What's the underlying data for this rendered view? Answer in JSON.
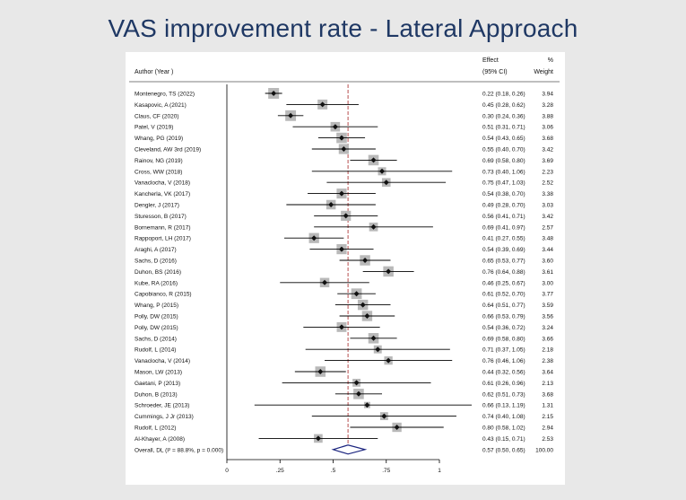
{
  "slide": {
    "title": "VAS improvement rate - Lateral Approach"
  },
  "chart_data": {
    "type": "forest",
    "title": "VAS improvement rate - Lateral Approach",
    "headers": {
      "author": "Author (Year )",
      "effect_line1": "Effect",
      "effect_line2": "(95% CI)",
      "weight_line1": "%",
      "weight_line2": "Weight"
    },
    "xlim": [
      0,
      1
    ],
    "x_ticks": [
      0,
      0.25,
      0.5,
      0.75,
      1
    ],
    "x_tick_labels": [
      "0",
      ".25",
      ".5",
      ".75",
      "1"
    ],
    "reference_line": 0.57,
    "studies": [
      {
        "author": "Montenegro, TS (2022)",
        "es": 0.22,
        "lo": 0.18,
        "hi": 0.26,
        "ci_text": "0.22 (0.18, 0.26)",
        "weight": "3.94"
      },
      {
        "author": "Kasapovic, A (2021)",
        "es": 0.45,
        "lo": 0.28,
        "hi": 0.62,
        "ci_text": "0.45 (0.28, 0.62)",
        "weight": "3.28"
      },
      {
        "author": "Claus, CF (2020)",
        "es": 0.3,
        "lo": 0.24,
        "hi": 0.36,
        "ci_text": "0.30 (0.24, 0.36)",
        "weight": "3.88"
      },
      {
        "author": "Patel, V (2019)",
        "es": 0.51,
        "lo": 0.31,
        "hi": 0.71,
        "ci_text": "0.51 (0.31, 0.71)",
        "weight": "3.06"
      },
      {
        "author": "Whang, PG (2019)",
        "es": 0.54,
        "lo": 0.43,
        "hi": 0.65,
        "ci_text": "0.54 (0.43, 0.65)",
        "weight": "3.68"
      },
      {
        "author": "Cleveland, AW 3rd (2019)",
        "es": 0.55,
        "lo": 0.4,
        "hi": 0.7,
        "ci_text": "0.55 (0.40, 0.70)",
        "weight": "3.42"
      },
      {
        "author": "Rainov, NG (2019)",
        "es": 0.69,
        "lo": 0.58,
        "hi": 0.8,
        "ci_text": "0.69 (0.58, 0.80)",
        "weight": "3.69"
      },
      {
        "author": "Cross, WW (2018)",
        "es": 0.73,
        "lo": 0.4,
        "hi": 1.06,
        "ci_text": "0.73 (0.40, 1.06)",
        "weight": "2.23"
      },
      {
        "author": "Vanaclocha, V (2018)",
        "es": 0.75,
        "lo": 0.47,
        "hi": 1.03,
        "ci_text": "0.75 (0.47, 1.03)",
        "weight": "2.52"
      },
      {
        "author": "Kancherla, VK (2017)",
        "es": 0.54,
        "lo": 0.38,
        "hi": 0.7,
        "ci_text": "0.54 (0.38, 0.70)",
        "weight": "3.38"
      },
      {
        "author": "Dengler, J (2017)",
        "es": 0.49,
        "lo": 0.28,
        "hi": 0.7,
        "ci_text": "0.49 (0.28, 0.70)",
        "weight": "3.03"
      },
      {
        "author": "Sturesson, B (2017)",
        "es": 0.56,
        "lo": 0.41,
        "hi": 0.71,
        "ci_text": "0.56 (0.41, 0.71)",
        "weight": "3.42"
      },
      {
        "author": "Bornemann, R (2017)",
        "es": 0.69,
        "lo": 0.41,
        "hi": 0.97,
        "ci_text": "0.69 (0.41, 0.97)",
        "weight": "2.57"
      },
      {
        "author": "Rappoport, LH (2017)",
        "es": 0.41,
        "lo": 0.27,
        "hi": 0.55,
        "ci_text": "0.41 (0.27, 0.55)",
        "weight": "3.48"
      },
      {
        "author": "Araghi, A (2017)",
        "es": 0.54,
        "lo": 0.39,
        "hi": 0.69,
        "ci_text": "0.54 (0.39, 0.69)",
        "weight": "3.44"
      },
      {
        "author": "Sachs, D (2016)",
        "es": 0.65,
        "lo": 0.53,
        "hi": 0.77,
        "ci_text": "0.65 (0.53, 0.77)",
        "weight": "3.60"
      },
      {
        "author": "Duhon, BS (2016)",
        "es": 0.76,
        "lo": 0.64,
        "hi": 0.88,
        "ci_text": "0.76 (0.64, 0.88)",
        "weight": "3.61"
      },
      {
        "author": "Kube, RA (2016)",
        "es": 0.46,
        "lo": 0.25,
        "hi": 0.67,
        "ci_text": "0.46 (0.25, 0.67)",
        "weight": "3.00"
      },
      {
        "author": "Capobianco, R (2015)",
        "es": 0.61,
        "lo": 0.52,
        "hi": 0.7,
        "ci_text": "0.61 (0.52, 0.70)",
        "weight": "3.77"
      },
      {
        "author": "Whang, P (2015)",
        "es": 0.64,
        "lo": 0.51,
        "hi": 0.77,
        "ci_text": "0.64 (0.51, 0.77)",
        "weight": "3.59"
      },
      {
        "author": "Polly, DW (2015)",
        "es": 0.66,
        "lo": 0.53,
        "hi": 0.79,
        "ci_text": "0.66 (0.53, 0.79)",
        "weight": "3.56"
      },
      {
        "author": "Polly, DW (2015)",
        "es": 0.54,
        "lo": 0.36,
        "hi": 0.72,
        "ci_text": "0.54 (0.36, 0.72)",
        "weight": "3.24"
      },
      {
        "author": "Sachs, D (2014)",
        "es": 0.69,
        "lo": 0.58,
        "hi": 0.8,
        "ci_text": "0.69 (0.58, 0.80)",
        "weight": "3.66"
      },
      {
        "author": "Rudolf, L (2014)",
        "es": 0.71,
        "lo": 0.37,
        "hi": 1.05,
        "ci_text": "0.71 (0.37, 1.05)",
        "weight": "2.18"
      },
      {
        "author": "Vanaclocha, V (2014)",
        "es": 0.76,
        "lo": 0.46,
        "hi": 1.06,
        "ci_text": "0.76 (0.46, 1.06)",
        "weight": "2.38"
      },
      {
        "author": "Mason, LW (2013)",
        "es": 0.44,
        "lo": 0.32,
        "hi": 0.56,
        "ci_text": "0.44 (0.32, 0.56)",
        "weight": "3.64"
      },
      {
        "author": "Gaetani, P (2013)",
        "es": 0.61,
        "lo": 0.26,
        "hi": 0.96,
        "ci_text": "0.61 (0.26, 0.96)",
        "weight": "2.13"
      },
      {
        "author": "Duhon, B (2013)",
        "es": 0.62,
        "lo": 0.51,
        "hi": 0.73,
        "ci_text": "0.62 (0.51, 0.73)",
        "weight": "3.68"
      },
      {
        "author": "Schroeder, JE (2013)",
        "es": 0.66,
        "lo": 0.13,
        "hi": 1.19,
        "ci_text": "0.66 (0.13, 1.19)",
        "weight": "1.31"
      },
      {
        "author": "Cummings, J Jr (2013)",
        "es": 0.74,
        "lo": 0.4,
        "hi": 1.08,
        "ci_text": "0.74 (0.40, 1.08)",
        "weight": "2.15"
      },
      {
        "author": "Rudolf, L (2012)",
        "es": 0.8,
        "lo": 0.58,
        "hi": 1.02,
        "ci_text": "0.80 (0.58, 1.02)",
        "weight": "2.94"
      },
      {
        "author": "Al-Khayer, A (2008)",
        "es": 0.43,
        "lo": 0.15,
        "hi": 0.71,
        "ci_text": "0.43 (0.15, 0.71)",
        "weight": "2.53"
      }
    ],
    "overall": {
      "label": "Overall, DL (I² = 88.8%, p = 0.000)",
      "es": 0.57,
      "lo": 0.5,
      "hi": 0.65,
      "ci_text": "0.57 (0.50, 0.65)",
      "weight": "100.00"
    },
    "colors": {
      "background": "#e8e8e8",
      "panel": "#ffffff",
      "title": "#1f3864",
      "weight_box": "#b9b9b9",
      "reference_line": "#b03a3a",
      "diamond": "#1a237e"
    }
  }
}
